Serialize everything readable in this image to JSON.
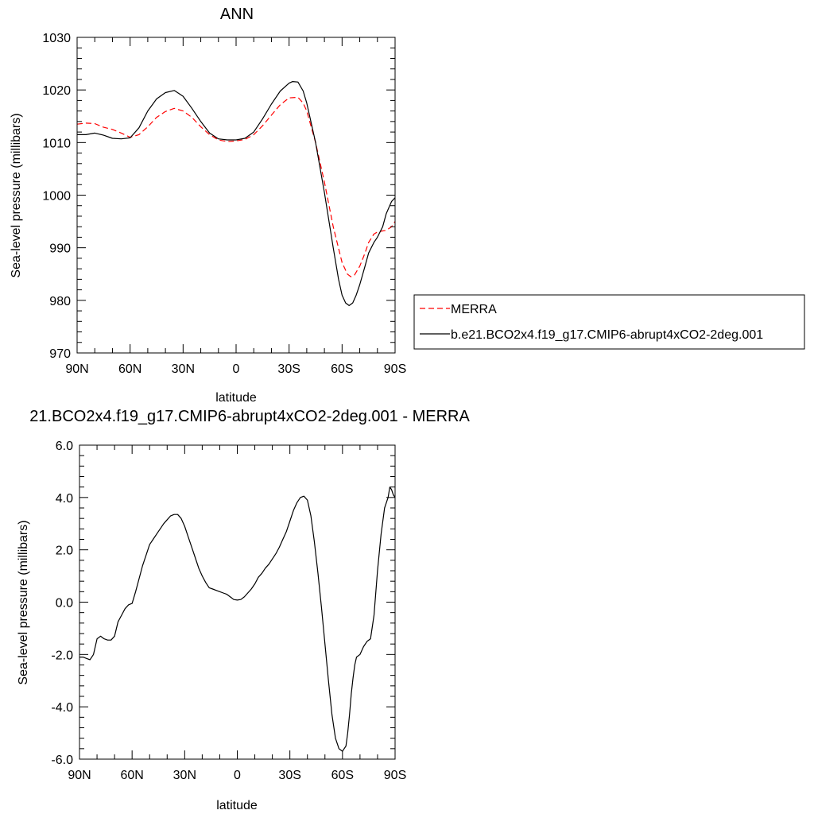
{
  "chart_data": [
    {
      "type": "line",
      "title": "ANN",
      "xlabel": "latitude",
      "ylabel": "Sea-level pressure (millibars)",
      "xlim": [
        90,
        -90
      ],
      "ylim": [
        970,
        1030
      ],
      "x_ticks": [
        {
          "value": 90,
          "label": "90N"
        },
        {
          "value": 60,
          "label": "60N"
        },
        {
          "value": 30,
          "label": "30N"
        },
        {
          "value": 0,
          "label": "0"
        },
        {
          "value": -30,
          "label": "30S"
        },
        {
          "value": -60,
          "label": "60S"
        },
        {
          "value": -90,
          "label": "90S"
        }
      ],
      "y_ticks": [
        {
          "value": 970,
          "label": "970"
        },
        {
          "value": 980,
          "label": "980"
        },
        {
          "value": 990,
          "label": "990"
        },
        {
          "value": 1000,
          "label": "1000"
        },
        {
          "value": 1010,
          "label": "1010"
        },
        {
          "value": 1020,
          "label": "1020"
        },
        {
          "value": 1030,
          "label": "1030"
        }
      ],
      "legend_placement": "right",
      "series": [
        {
          "name": "MERRA",
          "color": "#ff0000",
          "dash": "dashed",
          "x": [
            90,
            85,
            80,
            75,
            70,
            65,
            60,
            55,
            50,
            45,
            40,
            35,
            30,
            25,
            20,
            15,
            10,
            5,
            0,
            -5,
            -10,
            -15,
            -20,
            -25,
            -30,
            -35,
            -38,
            -40,
            -45,
            -50,
            -55,
            -60,
            -63,
            -65,
            -67,
            -70,
            -73,
            -75,
            -78,
            -80,
            -83,
            -85,
            -88,
            -90
          ],
          "y": [
            1013.5,
            1013.7,
            1013.6,
            1012.9,
            1012.5,
            1011.8,
            1011.0,
            1011.5,
            1013.0,
            1014.8,
            1015.9,
            1016.5,
            1016.0,
            1014.8,
            1013.0,
            1011.5,
            1010.5,
            1010.2,
            1010.3,
            1010.6,
            1011.5,
            1013.2,
            1015.2,
            1017.2,
            1018.5,
            1018.6,
            1017.5,
            1016.0,
            1010.0,
            1002.5,
            994.0,
            987.2,
            985.0,
            984.5,
            984.8,
            986.5,
            989.0,
            991.0,
            992.6,
            993.0,
            993.2,
            993.3,
            994.0,
            995.0
          ]
        },
        {
          "name": "b.e21.BCO2x4.f19_g17.CMIP6-abrupt4xCO2-2deg.001",
          "color": "#000000",
          "dash": "solid",
          "x": [
            90,
            85,
            80,
            75,
            70,
            65,
            60,
            55,
            50,
            45,
            40,
            35,
            30,
            25,
            20,
            15,
            10,
            5,
            0,
            -5,
            -10,
            -15,
            -20,
            -25,
            -30,
            -32,
            -35,
            -38,
            -40,
            -45,
            -50,
            -55,
            -58,
            -60,
            -62,
            -64,
            -66,
            -68,
            -70,
            -73,
            -75,
            -78,
            -80,
            -83,
            -85,
            -88,
            -90
          ],
          "y": [
            1011.5,
            1011.5,
            1011.8,
            1011.4,
            1010.8,
            1010.7,
            1010.9,
            1012.8,
            1016.0,
            1018.3,
            1019.5,
            1019.9,
            1018.8,
            1016.5,
            1014.0,
            1011.8,
            1010.7,
            1010.5,
            1010.5,
            1010.8,
            1012.0,
            1014.5,
            1017.3,
            1019.8,
            1021.3,
            1021.6,
            1021.5,
            1019.8,
            1017.5,
            1010.0,
            1000.5,
            990.0,
            984.0,
            981.0,
            979.5,
            979.0,
            979.5,
            981.0,
            983.0,
            986.5,
            989.0,
            991.0,
            992.0,
            994.0,
            996.5,
            998.8,
            999.5
          ]
        }
      ]
    },
    {
      "type": "line",
      "title": "21.BCO2x4.f19_g17.CMIP6-abrupt4xCO2-2deg.001 - MERRA",
      "xlabel": "latitude",
      "ylabel": "Sea-level pressure (millibars)",
      "xlim": [
        90,
        -90
      ],
      "ylim": [
        -6,
        6
      ],
      "x_ticks": [
        {
          "value": 90,
          "label": "90N"
        },
        {
          "value": 60,
          "label": "60N"
        },
        {
          "value": 30,
          "label": "30N"
        },
        {
          "value": 0,
          "label": "0"
        },
        {
          "value": -30,
          "label": "30S"
        },
        {
          "value": -60,
          "label": "60S"
        },
        {
          "value": -90,
          "label": "90S"
        }
      ],
      "y_ticks": [
        {
          "value": -6,
          "label": "-6.0"
        },
        {
          "value": -4,
          "label": "-4.0"
        },
        {
          "value": -2,
          "label": "-2.0"
        },
        {
          "value": 0,
          "label": "0.0"
        },
        {
          "value": 2,
          "label": "2.0"
        },
        {
          "value": 4,
          "label": "4.0"
        },
        {
          "value": 6,
          "label": "6.0"
        }
      ],
      "series": [
        {
          "color": "#000000",
          "dash": "solid",
          "x": [
            90,
            88,
            86,
            84,
            82,
            80,
            78,
            76,
            74,
            72,
            70,
            68,
            66,
            64,
            62,
            60,
            58,
            56,
            54,
            52,
            50,
            48,
            46,
            44,
            42,
            40,
            38,
            36,
            34,
            32,
            30,
            28,
            26,
            24,
            22,
            20,
            18,
            16,
            14,
            12,
            10,
            8,
            6,
            4,
            2,
            0,
            -2,
            -4,
            -6,
            -8,
            -10,
            -12,
            -14,
            -16,
            -18,
            -20,
            -22,
            -24,
            -26,
            -28,
            -30,
            -32,
            -34,
            -36,
            -38,
            -40,
            -42,
            -44,
            -46,
            -48,
            -50,
            -52,
            -54,
            -56,
            -58,
            -60,
            -62,
            -63,
            -64,
            -65,
            -66,
            -67,
            -68,
            -70,
            -72,
            -74,
            -76,
            -78,
            -80,
            -82,
            -84,
            -86,
            -87,
            -88,
            -89,
            -90
          ],
          "y": [
            -2.1,
            -2.1,
            -2.15,
            -2.2,
            -2.0,
            -1.4,
            -1.3,
            -1.4,
            -1.45,
            -1.45,
            -1.3,
            -0.75,
            -0.5,
            -0.25,
            -0.1,
            -0.05,
            0.4,
            0.9,
            1.4,
            1.8,
            2.2,
            2.4,
            2.6,
            2.8,
            3.0,
            3.15,
            3.3,
            3.35,
            3.35,
            3.2,
            2.9,
            2.5,
            2.1,
            1.7,
            1.3,
            1.0,
            0.75,
            0.55,
            0.5,
            0.45,
            0.4,
            0.35,
            0.3,
            0.2,
            0.1,
            0.08,
            0.1,
            0.2,
            0.35,
            0.5,
            0.7,
            0.95,
            1.1,
            1.3,
            1.45,
            1.65,
            1.85,
            2.1,
            2.4,
            2.7,
            3.1,
            3.5,
            3.8,
            4.0,
            4.05,
            3.9,
            3.3,
            2.3,
            1.1,
            -0.2,
            -1.6,
            -3.0,
            -4.3,
            -5.2,
            -5.6,
            -5.7,
            -5.5,
            -5.0,
            -4.3,
            -3.5,
            -2.9,
            -2.4,
            -2.1,
            -2.0,
            -1.7,
            -1.5,
            -1.4,
            -0.5,
            1.2,
            2.6,
            3.6,
            4.0,
            4.4,
            4.3,
            4.1,
            4.0
          ]
        }
      ]
    }
  ],
  "legend": {
    "items": [
      {
        "label": "MERRA",
        "color": "#ff0000",
        "dash": "dashed"
      },
      {
        "label": "b.e21.BCO2x4.f19_g17.CMIP6-abrupt4xCO2-2deg.001",
        "color": "#000000",
        "dash": "solid"
      }
    ]
  }
}
